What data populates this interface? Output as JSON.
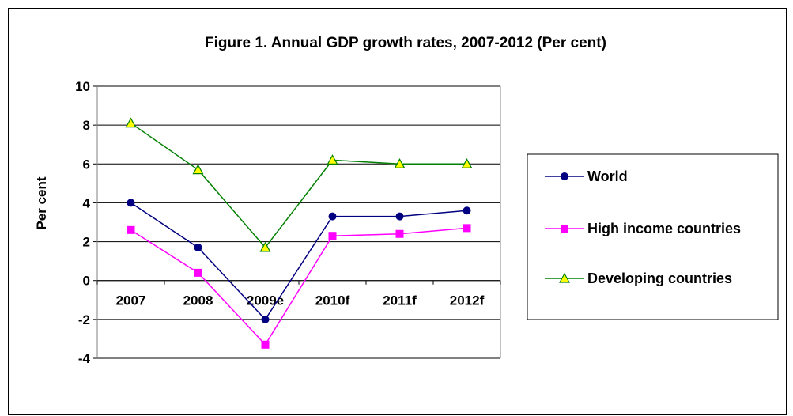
{
  "chart_data": {
    "type": "line",
    "title": "Figure 1. Annual GDP growth rates, 2007-2012 (Per cent)",
    "xlabel": "",
    "ylabel": "Per cent",
    "categories": [
      "2007",
      "2008",
      "2009e",
      "2010f",
      "2011f",
      "2012f"
    ],
    "ylim": [
      -4,
      10
    ],
    "yticks": [
      -4,
      -2,
      0,
      2,
      4,
      6,
      8,
      10
    ],
    "grid": "horizontal",
    "legend_position": "right",
    "series": [
      {
        "name": "World",
        "values": [
          4.0,
          1.7,
          -2.0,
          3.3,
          3.3,
          3.6
        ],
        "color": "#000080",
        "marker": "circle",
        "marker_fill": "#000080"
      },
      {
        "name": "High income countries",
        "values": [
          2.6,
          0.4,
          -3.3,
          2.3,
          2.4,
          2.7
        ],
        "color": "#FF00FF",
        "marker": "square",
        "marker_fill": "#FF00FF"
      },
      {
        "name": "Developing countries",
        "values": [
          8.1,
          5.7,
          1.7,
          6.2,
          6.0,
          6.0
        ],
        "color": "#008000",
        "marker": "triangle",
        "marker_fill": "#FFFF00"
      }
    ]
  }
}
